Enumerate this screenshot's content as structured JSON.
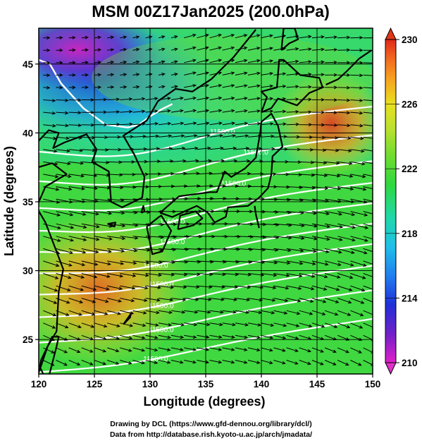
{
  "title": "MSM 00Z17Jan2025 (200.0hPa)",
  "x_axis": {
    "label": "Longitude (degrees)",
    "range": [
      120,
      150
    ],
    "ticks": [
      "120",
      "125",
      "130",
      "135",
      "140",
      "145",
      "150"
    ]
  },
  "y_axis": {
    "label": "Latitude  (degrees)",
    "range": [
      22.5,
      47.6
    ],
    "ticks": [
      "25",
      "30",
      "35",
      "40",
      "45"
    ]
  },
  "colorbar": {
    "range": [
      210,
      230
    ],
    "ticks": [
      "210",
      "214",
      "218",
      "222",
      "226",
      "230"
    ],
    "colors": [
      "#e020c8",
      "#7020c8",
      "#2030d8",
      "#2080f0",
      "#20d0e0",
      "#20d890",
      "#30d830",
      "#70dc30",
      "#b0e030",
      "#e0e020",
      "#f8b020",
      "#f06020",
      "#e02818"
    ]
  },
  "contours": {
    "color": "#ffffff",
    "labels": [
      "11500.0",
      "11500.0",
      "11500.0",
      "11500.0",
      "11500.0",
      "11500.0",
      "11500.0",
      "11500.0",
      "11500.0",
      "11500.0",
      "11500.0"
    ]
  },
  "field": {
    "variable": "temperature",
    "vectors": "wind"
  },
  "footer": {
    "line1": "Drawing by DCL (https://www.gfd-dennou.org/library/dcl/)",
    "line2": "Data from http://database.rish.kyoto-u.ac.jp/arch/jmadata/"
  }
}
